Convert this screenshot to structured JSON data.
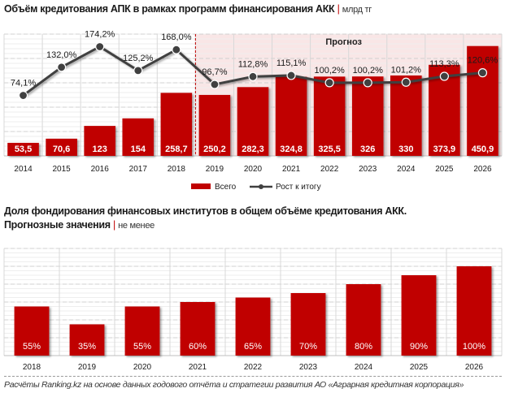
{
  "colors": {
    "bar": "#c00000",
    "line": "#404040",
    "forecast_bg": "#f9e6e6",
    "forecast_divider": "#c00000",
    "grid": "#d0d0d0"
  },
  "chart_data": [
    {
      "type": "bar",
      "title": "Объём кредитования АПК в рамках программ финансирования АКК",
      "unit": "млрд тг",
      "separator": "|",
      "categories": [
        "2014",
        "2015",
        "2016",
        "2017",
        "2018",
        "2019",
        "2020",
        "2021",
        "2022",
        "2023",
        "2024",
        "2025",
        "2026"
      ],
      "series": [
        {
          "name": "Всего",
          "type": "bar",
          "values": [
            53.5,
            70.6,
            123,
            154,
            258.7,
            250.2,
            282.3,
            324.8,
            325.5,
            326,
            330,
            373.9,
            450.9
          ],
          "labels": [
            "53,5",
            "70,6",
            "123",
            "154",
            "258,7",
            "250,2",
            "282,3",
            "324,8",
            "325,5",
            "326",
            "330",
            "373,9",
            "450,9"
          ]
        },
        {
          "name": "Рост к итогу",
          "type": "line",
          "values": [
            74.1,
            132.0,
            174.2,
            125.2,
            168.0,
            96.7,
            112.8,
            115.1,
            100.2,
            100.2,
            101.2,
            113.3,
            120.6
          ],
          "labels": [
            "74,1%",
            "132,0%",
            "174,2%",
            "125,2%",
            "168,0%",
            "96,7%",
            "112,8%",
            "115,1%",
            "100,2%",
            "100,2%",
            "101,2%",
            "113,3%",
            "120,6%"
          ]
        }
      ],
      "ylim": [
        0,
        500
      ],
      "y2lim": [
        -50,
        200
      ],
      "forecast_label": "Прогноз",
      "forecast_from": "2019",
      "legend": {
        "position": "bottom",
        "items": [
          "Всего",
          "Рост к итогу"
        ]
      },
      "grid": true
    },
    {
      "type": "bar",
      "title_line1": "Доля фондирования финансовых институтов в  общем объёме кредитования АКК.",
      "title_line2": "Прогнозные значения",
      "unit": "не менее",
      "separator": "|",
      "categories": [
        "2018",
        "2019",
        "2020",
        "2021",
        "2022",
        "2023",
        "2024",
        "2025",
        "2026"
      ],
      "values": [
        55,
        35,
        55,
        60,
        65,
        70,
        80,
        90,
        100
      ],
      "labels": [
        "55%",
        "35%",
        "55%",
        "60%",
        "65%",
        "70%",
        "80%",
        "90%",
        "100%"
      ],
      "ylim": [
        0,
        120
      ],
      "grid": true
    }
  ],
  "footer": "Расчёты Ranking.kz на основе данных  годового  отчёта и стратегии развития АО «Аграрная кредитная корпорация»"
}
